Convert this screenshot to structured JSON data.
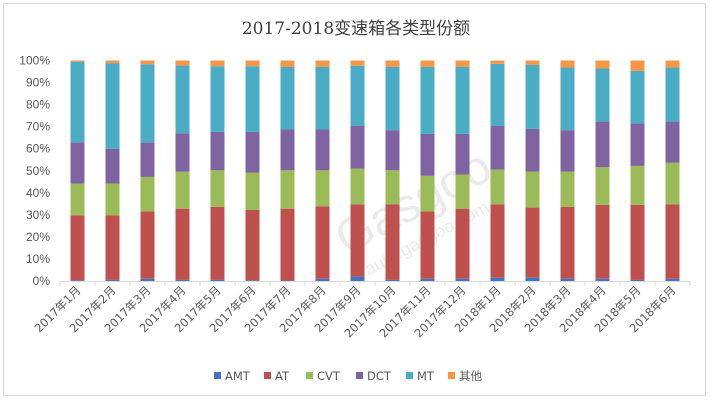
{
  "chart_data": {
    "type": "bar",
    "stacked": "percent",
    "title": "2017-2018变速箱各类型份额",
    "xlabel": "",
    "ylabel": "",
    "ylim": [
      0,
      100
    ],
    "yticks": [
      "0%",
      "10%",
      "20%",
      "30%",
      "40%",
      "50%",
      "60%",
      "70%",
      "80%",
      "90%",
      "100%"
    ],
    "grid": false,
    "legend_position": "bottom",
    "categories": [
      "2017年1月",
      "2017年2月",
      "2017年3月",
      "2017年4月",
      "2017年5月",
      "2017年6月",
      "2017年7月",
      "2017年8月",
      "2017年9月",
      "2017年10月",
      "2017年11月",
      "2017年12月",
      "2018年1月",
      "2018年2月",
      "2018年3月",
      "2018年4月",
      "2018年5月",
      "2018年6月"
    ],
    "series": [
      {
        "name": "AMT",
        "color": "#4472c4",
        "values": [
          0.3,
          0.5,
          1.0,
          0.5,
          0.5,
          0.3,
          0.2,
          1.0,
          2.0,
          0.5,
          1.0,
          1.0,
          1.5,
          1.5,
          1.0,
          1.0,
          0.5,
          1.0
        ]
      },
      {
        "name": "AT",
        "color": "#c0504d",
        "values": [
          29.5,
          29.3,
          30.5,
          32.3,
          33.1,
          31.9,
          32.6,
          32.9,
          32.8,
          34.3,
          30.5,
          31.8,
          33.3,
          31.8,
          32.6,
          33.5,
          34.0,
          33.8
        ]
      },
      {
        "name": "CVT",
        "color": "#9bbb59",
        "values": [
          14.4,
          14.4,
          15.7,
          16.8,
          16.6,
          17.0,
          17.4,
          16.3,
          16.2,
          15.4,
          16.2,
          15.5,
          15.7,
          16.3,
          16.0,
          17.1,
          17.7,
          18.8
        ]
      },
      {
        "name": "DCT",
        "color": "#8064a2",
        "values": [
          18.7,
          15.7,
          15.7,
          17.4,
          17.4,
          18.4,
          18.5,
          18.5,
          19.3,
          18.2,
          19.0,
          18.4,
          19.8,
          19.4,
          18.8,
          20.7,
          19.2,
          18.7
        ]
      },
      {
        "name": "MT",
        "color": "#4bacc6",
        "values": [
          36.6,
          38.9,
          35.4,
          30.7,
          29.8,
          29.8,
          28.4,
          28.4,
          27.3,
          28.7,
          30.4,
          30.4,
          28.2,
          29.0,
          28.4,
          24.1,
          23.9,
          24.5
        ]
      },
      {
        "name": "其他",
        "color": "#f79646",
        "values": [
          0.5,
          1.2,
          1.7,
          2.3,
          2.6,
          2.6,
          2.9,
          2.9,
          2.4,
          2.9,
          2.9,
          2.9,
          1.5,
          2.0,
          3.2,
          3.6,
          4.7,
          3.2
        ]
      }
    ]
  },
  "watermark": "盖世汽车 Gasgoo auto.gasgoo.com"
}
